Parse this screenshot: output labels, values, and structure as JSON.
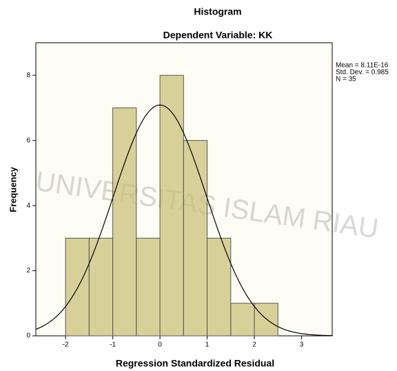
{
  "chart_data": {
    "type": "histogram",
    "title": "Histogram",
    "subtitle": "Dependent Variable: KK",
    "x_label": "Regression Standardized Residual",
    "y_label": "Frequency",
    "bins": [
      -2,
      -1.5,
      -1,
      -0.5,
      0,
      0.5,
      1,
      1.5,
      2,
      2.5
    ],
    "values": [
      3,
      3,
      7,
      3,
      8,
      6,
      3,
      1,
      1
    ],
    "color": "#c9c27a",
    "xlim": [
      -2.63,
      3.65
    ],
    "ylim": [
      0,
      9
    ],
    "xticks": [
      -2,
      -1,
      0,
      1,
      2,
      3
    ],
    "yticks": [
      0,
      2,
      4,
      6,
      8
    ],
    "stats": [
      {
        "value": 8.11e-16,
        "label": "Mean = 8.11E-16"
      },
      {
        "value": 0.985,
        "label": "Std. Dev. = 0.985"
      },
      {
        "value": 35,
        "label": "N = 35"
      }
    ],
    "watermark": "UNIVERSITAS ISLAM RIAU"
  }
}
